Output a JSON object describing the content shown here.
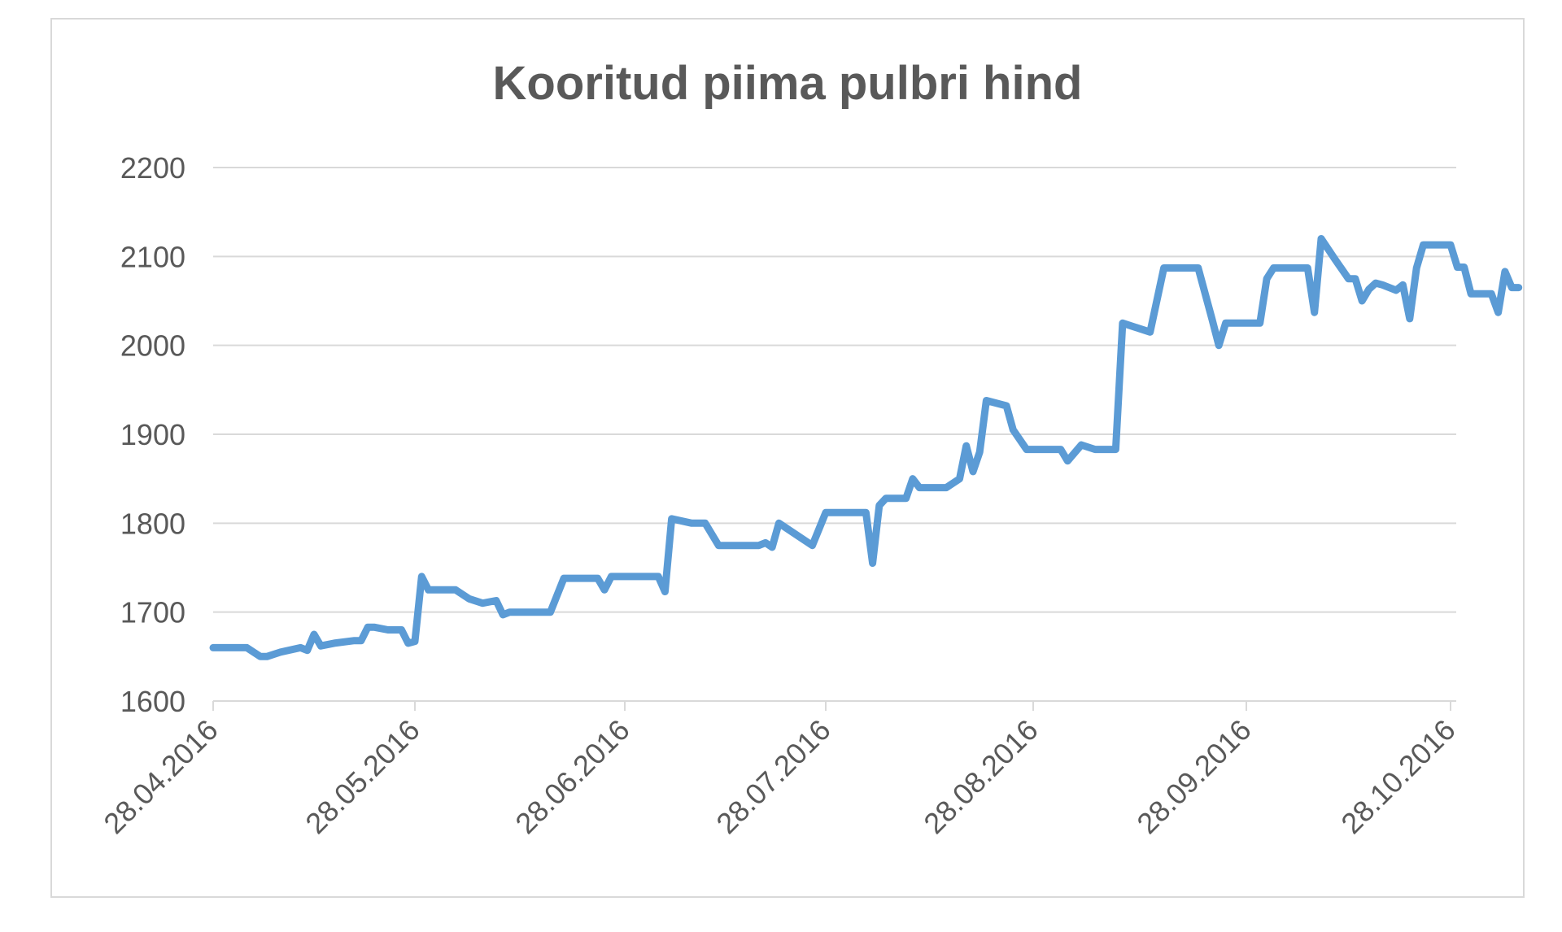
{
  "chart_data": {
    "type": "line",
    "title": "Kooritud piima pulbri hind",
    "xlabel": "",
    "ylabel": "",
    "ylim": [
      1600,
      2200
    ],
    "yticks": [
      1600,
      1700,
      1800,
      1900,
      2000,
      2100,
      2200
    ],
    "xlim": [
      "2016-04-28",
      "2016-10-28"
    ],
    "xticks": [
      {
        "date": "2016-04-28",
        "label": "28.04.2016"
      },
      {
        "date": "2016-05-28",
        "label": "28.05.2016"
      },
      {
        "date": "2016-06-28",
        "label": "28.06.2016"
      },
      {
        "date": "2016-07-28",
        "label": "28.07.2016"
      },
      {
        "date": "2016-08-28",
        "label": "28.08.2016"
      },
      {
        "date": "2016-09-28",
        "label": "28.09.2016"
      },
      {
        "date": "2016-10-28",
        "label": "28.10.2016"
      }
    ],
    "grid": true,
    "legend": "none",
    "color": "#5b9bd5",
    "series": [
      {
        "points": [
          [
            "2016-04-28",
            1660
          ],
          [
            "2016-05-02",
            1660
          ],
          [
            "2016-05-03",
            1660
          ],
          [
            "2016-05-05",
            1650
          ],
          [
            "2016-05-06",
            1650
          ],
          [
            "2016-05-08",
            1655
          ],
          [
            "2016-05-11",
            1660
          ],
          [
            "2016-05-12",
            1657
          ],
          [
            "2016-05-13",
            1675
          ],
          [
            "2016-05-14",
            1662
          ],
          [
            "2016-05-16",
            1665
          ],
          [
            "2016-05-19",
            1668
          ],
          [
            "2016-05-20",
            1668
          ],
          [
            "2016-05-21",
            1683
          ],
          [
            "2016-05-22",
            1683
          ],
          [
            "2016-05-24",
            1680
          ],
          [
            "2016-05-26",
            1680
          ],
          [
            "2016-05-27",
            1665
          ],
          [
            "2016-05-28",
            1667
          ],
          [
            "2016-05-29",
            1740
          ],
          [
            "2016-05-30",
            1725
          ],
          [
            "2016-06-01",
            1725
          ],
          [
            "2016-06-03",
            1725
          ],
          [
            "2016-06-05",
            1715
          ],
          [
            "2016-06-07",
            1710
          ],
          [
            "2016-06-09",
            1713
          ],
          [
            "2016-06-10",
            1697
          ],
          [
            "2016-06-11",
            1700
          ],
          [
            "2016-06-13",
            1700
          ],
          [
            "2016-06-17",
            1700
          ],
          [
            "2016-06-19",
            1738
          ],
          [
            "2016-06-21",
            1738
          ],
          [
            "2016-06-24",
            1738
          ],
          [
            "2016-06-25",
            1725
          ],
          [
            "2016-06-26",
            1740
          ],
          [
            "2016-06-28",
            1740
          ],
          [
            "2016-07-03",
            1740
          ],
          [
            "2016-07-04",
            1723
          ],
          [
            "2016-07-05",
            1805
          ],
          [
            "2016-07-08",
            1800
          ],
          [
            "2016-07-10",
            1800
          ],
          [
            "2016-07-12",
            1775
          ],
          [
            "2016-07-14",
            1775
          ],
          [
            "2016-07-18",
            1775
          ],
          [
            "2016-07-19",
            1778
          ],
          [
            "2016-07-20",
            1773
          ],
          [
            "2016-07-21",
            1800
          ],
          [
            "2016-07-24",
            1785
          ],
          [
            "2016-07-26",
            1775
          ],
          [
            "2016-07-28",
            1812
          ],
          [
            "2016-07-31",
            1812
          ],
          [
            "2016-08-02",
            1812
          ],
          [
            "2016-08-03",
            1812
          ],
          [
            "2016-08-04",
            1755
          ],
          [
            "2016-08-05",
            1820
          ],
          [
            "2016-08-06",
            1828
          ],
          [
            "2016-08-08",
            1828
          ],
          [
            "2016-08-09",
            1828
          ],
          [
            "2016-08-10",
            1850
          ],
          [
            "2016-08-11",
            1840
          ],
          [
            "2016-08-12",
            1840
          ],
          [
            "2016-08-15",
            1840
          ],
          [
            "2016-08-17",
            1850
          ],
          [
            "2016-08-18",
            1887
          ],
          [
            "2016-08-19",
            1858
          ],
          [
            "2016-08-20",
            1880
          ],
          [
            "2016-08-21",
            1938
          ],
          [
            "2016-08-24",
            1932
          ],
          [
            "2016-08-25",
            1905
          ],
          [
            "2016-08-27",
            1883
          ],
          [
            "2016-08-29",
            1883
          ],
          [
            "2016-09-01",
            1883
          ],
          [
            "2016-09-02",
            1870
          ],
          [
            "2016-09-04",
            1888
          ],
          [
            "2016-09-06",
            1883
          ],
          [
            "2016-09-08",
            1883
          ],
          [
            "2016-09-09",
            1883
          ],
          [
            "2016-09-10",
            2025
          ],
          [
            "2016-09-12",
            2020
          ],
          [
            "2016-09-14",
            2015
          ],
          [
            "2016-09-16",
            2087
          ],
          [
            "2016-09-19",
            2087
          ],
          [
            "2016-09-21",
            2087
          ],
          [
            "2016-09-23",
            2030
          ],
          [
            "2016-09-24",
            2000
          ],
          [
            "2016-09-25",
            2025
          ],
          [
            "2016-09-28",
            2025
          ],
          [
            "2016-09-30",
            2025
          ],
          [
            "2016-10-01",
            2075
          ],
          [
            "2016-10-02",
            2087
          ],
          [
            "2016-10-05",
            2087
          ],
          [
            "2016-10-07",
            2087
          ],
          [
            "2016-10-08",
            2037
          ],
          [
            "2016-10-09",
            2120
          ],
          [
            "2016-10-11",
            2097
          ],
          [
            "2016-10-13",
            2075
          ],
          [
            "2016-10-14",
            2075
          ],
          [
            "2016-10-15",
            2050
          ],
          [
            "2016-10-16",
            2063
          ],
          [
            "2016-10-17",
            2070
          ],
          [
            "2016-10-18",
            2068
          ],
          [
            "2016-10-20",
            2062
          ],
          [
            "2016-10-21",
            2068
          ],
          [
            "2016-10-22",
            2030
          ],
          [
            "2016-10-23",
            2087
          ],
          [
            "2016-10-24",
            2113
          ],
          [
            "2016-10-26",
            2113
          ],
          [
            "2016-10-28",
            2113
          ],
          [
            "2016-10-29",
            2088
          ],
          [
            "2016-10-30",
            2088
          ],
          [
            "2016-10-31",
            2058
          ],
          [
            "2016-11-03",
            2058
          ],
          [
            "2016-11-04",
            2037
          ],
          [
            "2016-11-05",
            2083
          ],
          [
            "2016-11-06",
            2065
          ],
          [
            "2016-11-07",
            2065
          ]
        ]
      }
    ]
  }
}
